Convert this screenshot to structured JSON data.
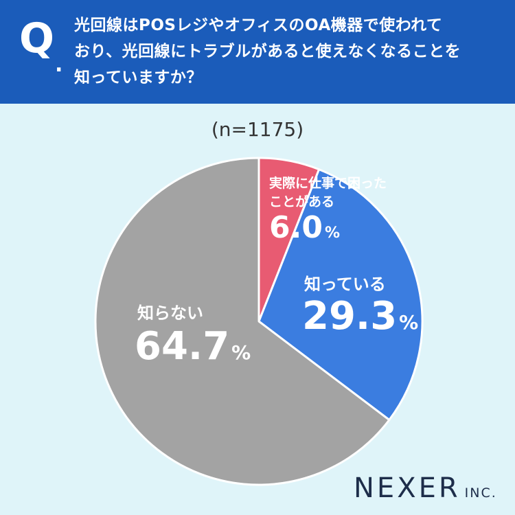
{
  "header": {
    "q_mark": "Q",
    "q_dot": ".",
    "question_lines": [
      "光回線はPOSレジやオフィスのOA機器で使われて",
      "おり、光回線にトラブルがあると使えなくなることを",
      "知っていますか？"
    ]
  },
  "sample_label": "(n=1175)",
  "chart_data": {
    "type": "pie",
    "n": 1175,
    "start": "12 o'clock",
    "direction": "clockwise",
    "slices": [
      {
        "label_lines": [
          "実際に仕事で困った",
          "ことがある"
        ],
        "value": 6.0,
        "display": "6.0",
        "color": "#e85b72"
      },
      {
        "label_lines": [
          "知っている"
        ],
        "value": 29.3,
        "display": "29.3",
        "color": "#3b7de0"
      },
      {
        "label_lines": [
          "知らない"
        ],
        "value": 64.7,
        "display": "64.7",
        "color": "#a3a3a3"
      }
    ],
    "unit": "%"
  },
  "logo": {
    "main": "NEXER",
    "sub": "INC."
  }
}
